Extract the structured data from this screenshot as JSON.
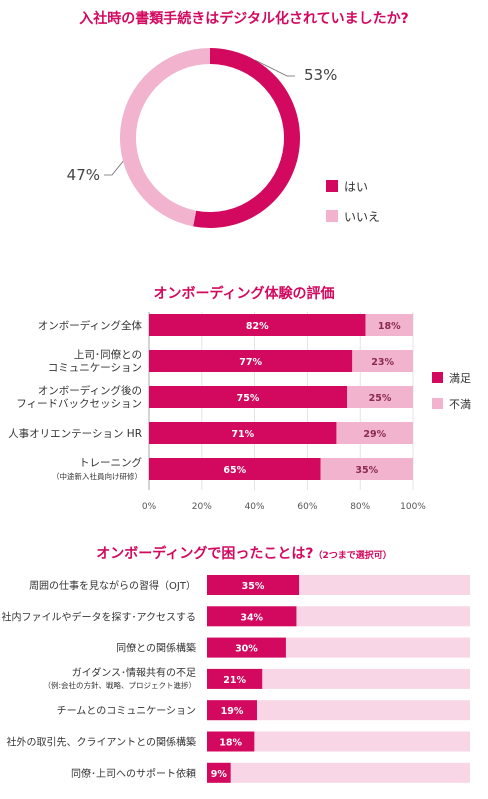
{
  "colors": {
    "accent": "#d3095f",
    "light": "#f1b3cd",
    "pale": "#f8d6e5",
    "text": "#333333",
    "grid": "#dddddd"
  },
  "chart_data": [
    {
      "type": "pie",
      "title": "入社時の書類手続きはデジタル化されていましたか?",
      "slices": [
        {
          "label": "はい",
          "value": 53,
          "display": "53%",
          "color": "#d3095f"
        },
        {
          "label": "いいえ",
          "value": 47,
          "display": "47%",
          "color": "#f1b3cd"
        }
      ]
    },
    {
      "type": "bar",
      "orientation": "horizontal",
      "stacked": true,
      "title": "オンボーディング体験の評価",
      "categories": [
        [
          "オンボーディング全体"
        ],
        [
          "上司･同僚との",
          "コミュニケーション"
        ],
        [
          "オンボーディング後の",
          "フィードバックセッション"
        ],
        [
          "人事オリエンテーション HR"
        ],
        [
          "トレーニング",
          "（中途新入社員向け研修）"
        ]
      ],
      "series": [
        {
          "name": "満足",
          "values": [
            82,
            77,
            75,
            71,
            65
          ],
          "labels": [
            "82%",
            "77%",
            "75%",
            "71%",
            "65%"
          ],
          "color": "#d3095f"
        },
        {
          "name": "不満",
          "values": [
            18,
            23,
            25,
            29,
            35
          ],
          "labels": [
            "18%",
            "23%",
            "25%",
            "29%",
            "35%"
          ],
          "color": "#f1b3cd"
        }
      ],
      "xlim": [
        0,
        100
      ],
      "xticks": [
        "0%",
        "20%",
        "40%",
        "60%",
        "80%",
        "100%"
      ],
      "grid": true,
      "legend": "right"
    },
    {
      "type": "bar",
      "orientation": "horizontal",
      "title": "オンボーディングで困ったことは?",
      "title_note": "（2つまで選択可）",
      "categories": [
        [
          "周囲の仕事を見ながらの習得（OJT）"
        ],
        [
          "社内ファイルやデータを探す･アクセスする"
        ],
        [
          "同僚との関係構築"
        ],
        [
          "ガイダンス･情報共有の不足",
          "（例:会社の方針、戦略、プロジェクト進捗）"
        ],
        [
          "チームとのコミュニケーション"
        ],
        [
          "社外の取引先、クライアントとの関係構築"
        ],
        [
          "同僚･上司へのサポート依頼"
        ]
      ],
      "values": [
        35,
        34,
        30,
        21,
        19,
        18,
        9
      ],
      "labels": [
        "35%",
        "34%",
        "30%",
        "21%",
        "19%",
        "18%",
        "9%"
      ],
      "xlim": [
        0,
        100
      ]
    }
  ]
}
